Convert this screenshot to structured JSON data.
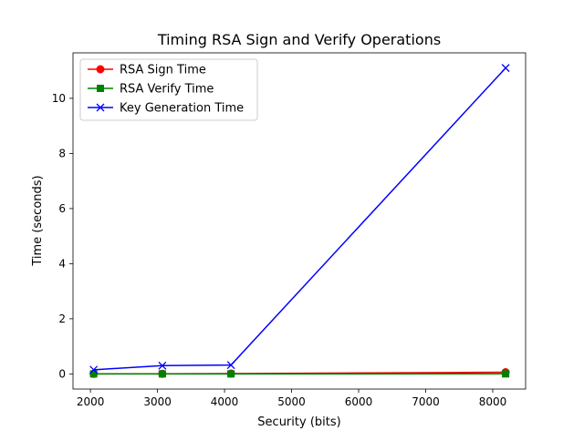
{
  "chart_data": {
    "type": "line",
    "title": "Timing RSA Sign and Verify Operations",
    "xlabel": "Security (bits)",
    "ylabel": "Time (seconds)",
    "xlim": [
      1740,
      8490
    ],
    "ylim": [
      -0.55,
      11.65
    ],
    "xticks": [
      2000,
      3000,
      4000,
      5000,
      6000,
      7000,
      8000
    ],
    "yticks": [
      0,
      2,
      4,
      6,
      8,
      10
    ],
    "x": [
      2048,
      3072,
      4096,
      8192
    ],
    "grid": false,
    "legend_position": "upper-left",
    "series": [
      {
        "name": "RSA Sign Time",
        "color": "#ff0000",
        "marker": "circle",
        "values": [
          0.002,
          0.005,
          0.01,
          0.06
        ]
      },
      {
        "name": "RSA Verify Time",
        "color": "#008000",
        "marker": "square",
        "values": [
          0.0002,
          0.0003,
          0.0005,
          0.002
        ]
      },
      {
        "name": "Key Generation Time",
        "color": "#0000ff",
        "marker": "x",
        "values": [
          0.15,
          0.3,
          0.32,
          11.1
        ]
      }
    ]
  }
}
